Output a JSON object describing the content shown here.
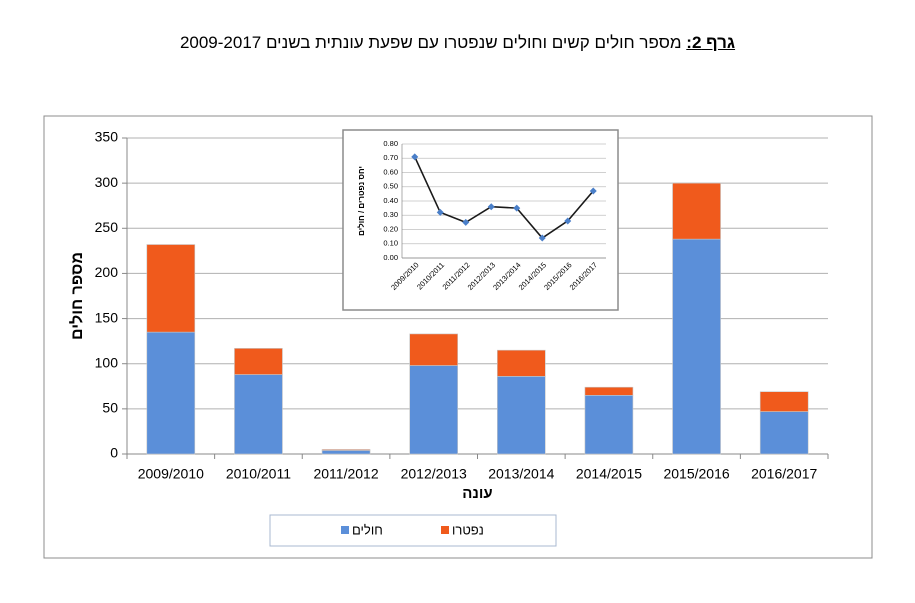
{
  "chart_data": [
    {
      "type": "bar",
      "stacked": true,
      "title_label": "גרף 2:",
      "title": "מספר חולים קשים וחולים שנפטרו עם שפעת עונתית בשנים 2009-2017",
      "ylabel": "מספר חולים",
      "xlabel": "עונה",
      "categories": [
        "2009/2010",
        "2010/2011",
        "2011/2012",
        "2012/2013",
        "2013/2014",
        "2014/2015",
        "2015/2016",
        "2016/2017"
      ],
      "series": [
        {
          "name": "חולים",
          "color": "#5b8fd9",
          "values": [
            135,
            88,
            4,
            98,
            86,
            65,
            238,
            47
          ]
        },
        {
          "name": "נפטרו",
          "color": "#f05a1c",
          "values": [
            97,
            29,
            1,
            35,
            29,
            9,
            62,
            22
          ]
        }
      ],
      "ylim": [
        0,
        350
      ],
      "yticks": [
        0,
        50,
        100,
        150,
        200,
        250,
        300,
        350
      ],
      "grid": true,
      "legend": "bottom"
    },
    {
      "type": "line",
      "ylabel": "יחס נפטרים / חולים",
      "categories": [
        "2009/2010",
        "2010/2011",
        "2011/2012",
        "2012/2013",
        "2013/2014",
        "2014/2015",
        "2015/2016",
        "2016/2017"
      ],
      "values": [
        0.71,
        0.32,
        0.25,
        0.36,
        0.35,
        0.14,
        0.26,
        0.47
      ],
      "color": "#1a1a1a",
      "marker_color": "#4a7fc9",
      "ylim": [
        0,
        0.8
      ],
      "yticks": [
        {
          "value": 0,
          "label": "0.00"
        },
        {
          "value": 0.1,
          "label": "0.10"
        },
        {
          "value": 0.2,
          "label": "0.20"
        },
        {
          "value": 0.3,
          "label": "0.30"
        },
        {
          "value": 0.4,
          "label": "0.40"
        },
        {
          "value": 0.5,
          "label": "0.50"
        },
        {
          "value": 0.6,
          "label": "0.60"
        },
        {
          "value": 0.7,
          "label": "0.70"
        },
        {
          "value": 0.8,
          "label": "0.80"
        }
      ],
      "grid": true
    }
  ]
}
